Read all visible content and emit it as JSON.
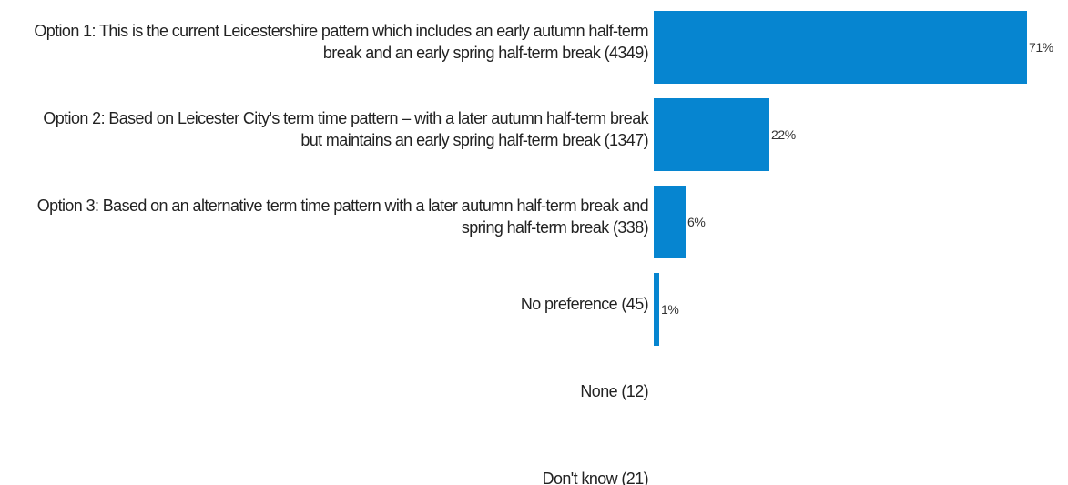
{
  "chart_data": {
    "type": "bar",
    "orientation": "horizontal",
    "categories": [
      "Option 1: This is the current Leicestershire pattern which includes an early autumn half-term break and an early spring half-term break (4349)",
      "Option 2: Based on Leicester City's term time pattern – with a later autumn half-term break but maintains an early spring half-term break (1347)",
      "Option 3: Based on an alternative term time pattern with a later autumn half-term break and spring half-term break (338)",
      "No preference (45)",
      "None  (12)",
      "Don't know (21)"
    ],
    "values": [
      71,
      22,
      6,
      1,
      0,
      0
    ],
    "value_labels": [
      "71%",
      "22%",
      "6%",
      "1%",
      "",
      ""
    ],
    "xlim": [
      0,
      100
    ],
    "grid": false,
    "legend": "none",
    "bar_color": "#0685d0"
  }
}
